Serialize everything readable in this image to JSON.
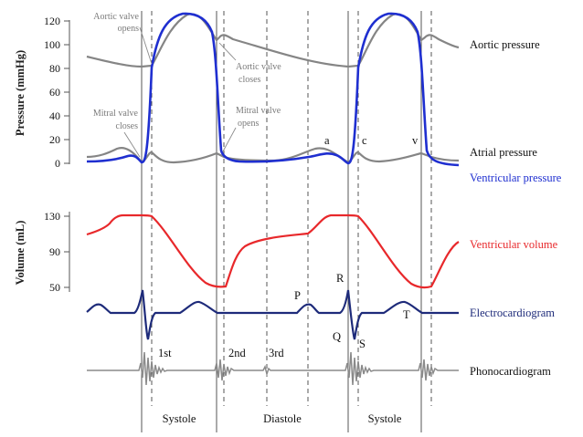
{
  "colors": {
    "aortic": "#858585",
    "atrial": "#858585",
    "ventricular_pressure": "#1f2fd0",
    "ventricular_volume": "#e8282b",
    "ecg": "#1e2b7a",
    "phono": "#8a8a8a",
    "frame": "#444444"
  },
  "pressure_axis": {
    "title": "Pressure (mmHg)",
    "ticks": [
      "120",
      "100",
      "80",
      "60",
      "40",
      "20",
      "0"
    ]
  },
  "volume_axis": {
    "title": "Volume (mL)",
    "ticks": [
      "130",
      "90",
      "50"
    ]
  },
  "annotations": {
    "aortic_opens_1": "Aortic valve",
    "aortic_opens_2": "opens",
    "aortic_closes_1": "Aortic valve",
    "aortic_closes_2": "closes",
    "mitral_closes_1": "Mitral valve",
    "mitral_closes_2": "closes",
    "mitral_opens_1": "Mitral valve",
    "mitral_opens_2": "opens"
  },
  "wave_letters": {
    "a": "a",
    "c": "c",
    "v": "v",
    "P": "P",
    "Q": "Q",
    "R": "R",
    "S": "S",
    "T": "T"
  },
  "heart_sounds": {
    "s1": "1st",
    "s2": "2nd",
    "s3": "3rd"
  },
  "curve_labels": {
    "aortic": "Aortic pressure",
    "atrial": "Atrial pressure",
    "ventricular_pressure": "Ventricular pressure",
    "ventricular_volume": "Ventricular volume",
    "ecg": "Electrocardiogram",
    "phono": "Phonocardiogram"
  },
  "phases": {
    "systole_1": "Systole",
    "diastole": "Diastole",
    "systole_2": "Systole"
  }
}
